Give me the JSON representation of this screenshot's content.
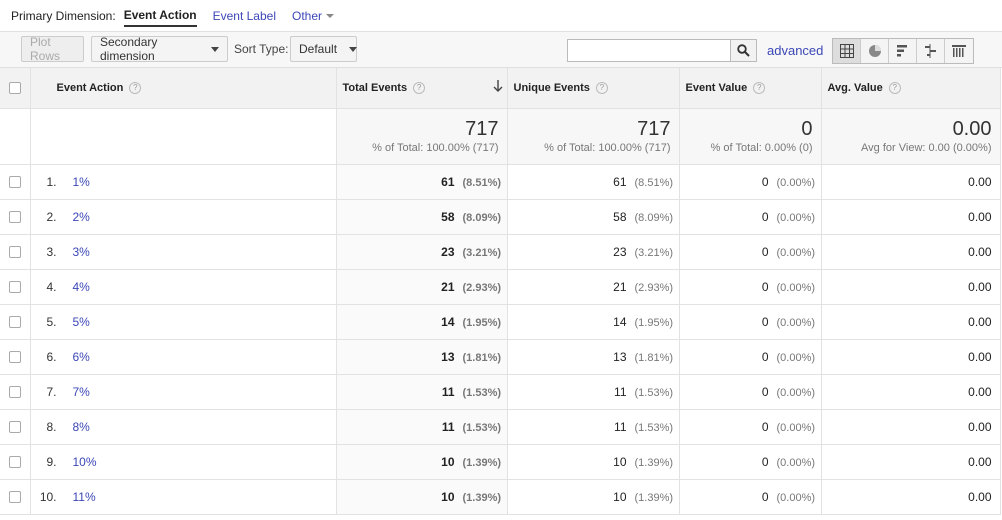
{
  "primary_dimension": {
    "label": "Primary Dimension:",
    "active": "Event Action",
    "options": [
      "Event Label",
      "Other"
    ]
  },
  "toolbar": {
    "plot_rows": "Plot Rows",
    "secondary_dimension": "Secondary dimension",
    "sort_type_label": "Sort Type:",
    "sort_type_value": "Default",
    "search_value": "",
    "advanced": "advanced",
    "view_icons": [
      "grid-view-icon",
      "pie-view-icon",
      "bar-view-icon",
      "comparison-view-icon",
      "pivot-view-icon"
    ]
  },
  "table": {
    "headers": {
      "dimension": "Event Action",
      "total_events": "Total Events",
      "unique_events": "Unique Events",
      "event_value": "Event Value",
      "avg_value": "Avg. Value",
      "help": "?"
    },
    "totals": {
      "total_events": "717",
      "total_events_sub": "% of Total: 100.00% (717)",
      "unique_events": "717",
      "unique_events_sub": "% of Total: 100.00% (717)",
      "event_value": "0",
      "event_value_sub": "% of Total: 0.00% (0)",
      "avg_value": "0.00",
      "avg_value_sub": "Avg for View: 0.00 (0.00%)"
    },
    "rows": [
      {
        "rank": "1.",
        "action": "1%",
        "total": "61",
        "total_pct": "(8.51%)",
        "unique": "61",
        "unique_pct": "(8.51%)",
        "value": "0",
        "value_pct": "(0.00%)",
        "avg": "0.00"
      },
      {
        "rank": "2.",
        "action": "2%",
        "total": "58",
        "total_pct": "(8.09%)",
        "unique": "58",
        "unique_pct": "(8.09%)",
        "value": "0",
        "value_pct": "(0.00%)",
        "avg": "0.00"
      },
      {
        "rank": "3.",
        "action": "3%",
        "total": "23",
        "total_pct": "(3.21%)",
        "unique": "23",
        "unique_pct": "(3.21%)",
        "value": "0",
        "value_pct": "(0.00%)",
        "avg": "0.00"
      },
      {
        "rank": "4.",
        "action": "4%",
        "total": "21",
        "total_pct": "(2.93%)",
        "unique": "21",
        "unique_pct": "(2.93%)",
        "value": "0",
        "value_pct": "(0.00%)",
        "avg": "0.00"
      },
      {
        "rank": "5.",
        "action": "5%",
        "total": "14",
        "total_pct": "(1.95%)",
        "unique": "14",
        "unique_pct": "(1.95%)",
        "value": "0",
        "value_pct": "(0.00%)",
        "avg": "0.00"
      },
      {
        "rank": "6.",
        "action": "6%",
        "total": "13",
        "total_pct": "(1.81%)",
        "unique": "13",
        "unique_pct": "(1.81%)",
        "value": "0",
        "value_pct": "(0.00%)",
        "avg": "0.00"
      },
      {
        "rank": "7.",
        "action": "7%",
        "total": "11",
        "total_pct": "(1.53%)",
        "unique": "11",
        "unique_pct": "(1.53%)",
        "value": "0",
        "value_pct": "(0.00%)",
        "avg": "0.00"
      },
      {
        "rank": "8.",
        "action": "8%",
        "total": "11",
        "total_pct": "(1.53%)",
        "unique": "11",
        "unique_pct": "(1.53%)",
        "value": "0",
        "value_pct": "(0.00%)",
        "avg": "0.00"
      },
      {
        "rank": "9.",
        "action": "10%",
        "total": "10",
        "total_pct": "(1.39%)",
        "unique": "10",
        "unique_pct": "(1.39%)",
        "value": "0",
        "value_pct": "(0.00%)",
        "avg": "0.00"
      },
      {
        "rank": "10.",
        "action": "11%",
        "total": "10",
        "total_pct": "(1.39%)",
        "unique": "10",
        "unique_pct": "(1.39%)",
        "value": "0",
        "value_pct": "(0.00%)",
        "avg": "0.00"
      }
    ]
  }
}
